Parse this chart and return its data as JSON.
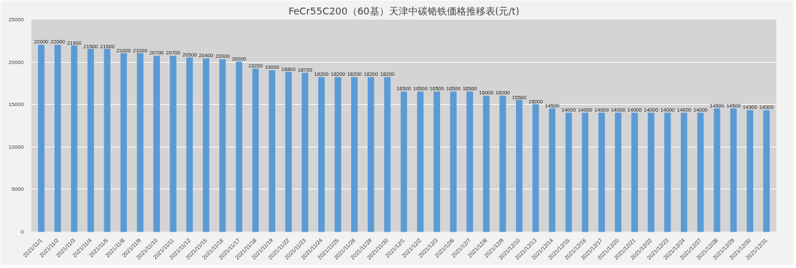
{
  "chart_data": {
    "type": "bar",
    "title": "FeCr55C200（60基）天津中碳铬铁価格推移表(元/t)",
    "categories": [
      "2021/11/1",
      "2021/11/2",
      "2021/11/3",
      "2021/11/4",
      "2021/11/5",
      "2021/11/8",
      "2021/11/9",
      "2021/11/10",
      "2021/11/11",
      "2021/11/12",
      "2021/11/15",
      "2021/11/16",
      "2021/11/17",
      "2021/11/18",
      "2021/11/19",
      "2021/11/22",
      "2021/11/23",
      "2021/11/24",
      "2021/11/25",
      "2021/11/26",
      "2021/11/29",
      "2021/11/30",
      "2021/12/1",
      "2021/12/2",
      "2021/12/3",
      "2021/12/6",
      "2021/12/7",
      "2021/12/8",
      "2021/12/9",
      "2021/12/10",
      "2021/12/13",
      "2021/12/14",
      "2021/12/15",
      "2021/12/16",
      "2021/12/17",
      "2021/12/20",
      "2021/12/21",
      "2021/12/22",
      "2021/12/23",
      "2021/12/24",
      "2021/12/27",
      "2021/12/28",
      "2021/12/29",
      "2021/12/30",
      "2021/12/31"
    ],
    "values": [
      22000,
      22000,
      21900,
      21500,
      21500,
      21000,
      21000,
      20700,
      20700,
      20500,
      20400,
      20300,
      20000,
      19200,
      19000,
      18800,
      18700,
      18200,
      18200,
      18200,
      18200,
      18200,
      16500,
      16500,
      16500,
      16500,
      16500,
      16000,
      16000,
      15500,
      15000,
      14500,
      14000,
      14000,
      14000,
      14000,
      14000,
      14000,
      14000,
      14000,
      14000,
      14500,
      14500,
      14300,
      14300
    ],
    "color": "#5b9bd5",
    "ylim": [
      0,
      25000
    ],
    "yticks": [
      0,
      5000,
      10000,
      15000,
      20000,
      25000
    ],
    "grid": "y",
    "data_labels": true
  }
}
